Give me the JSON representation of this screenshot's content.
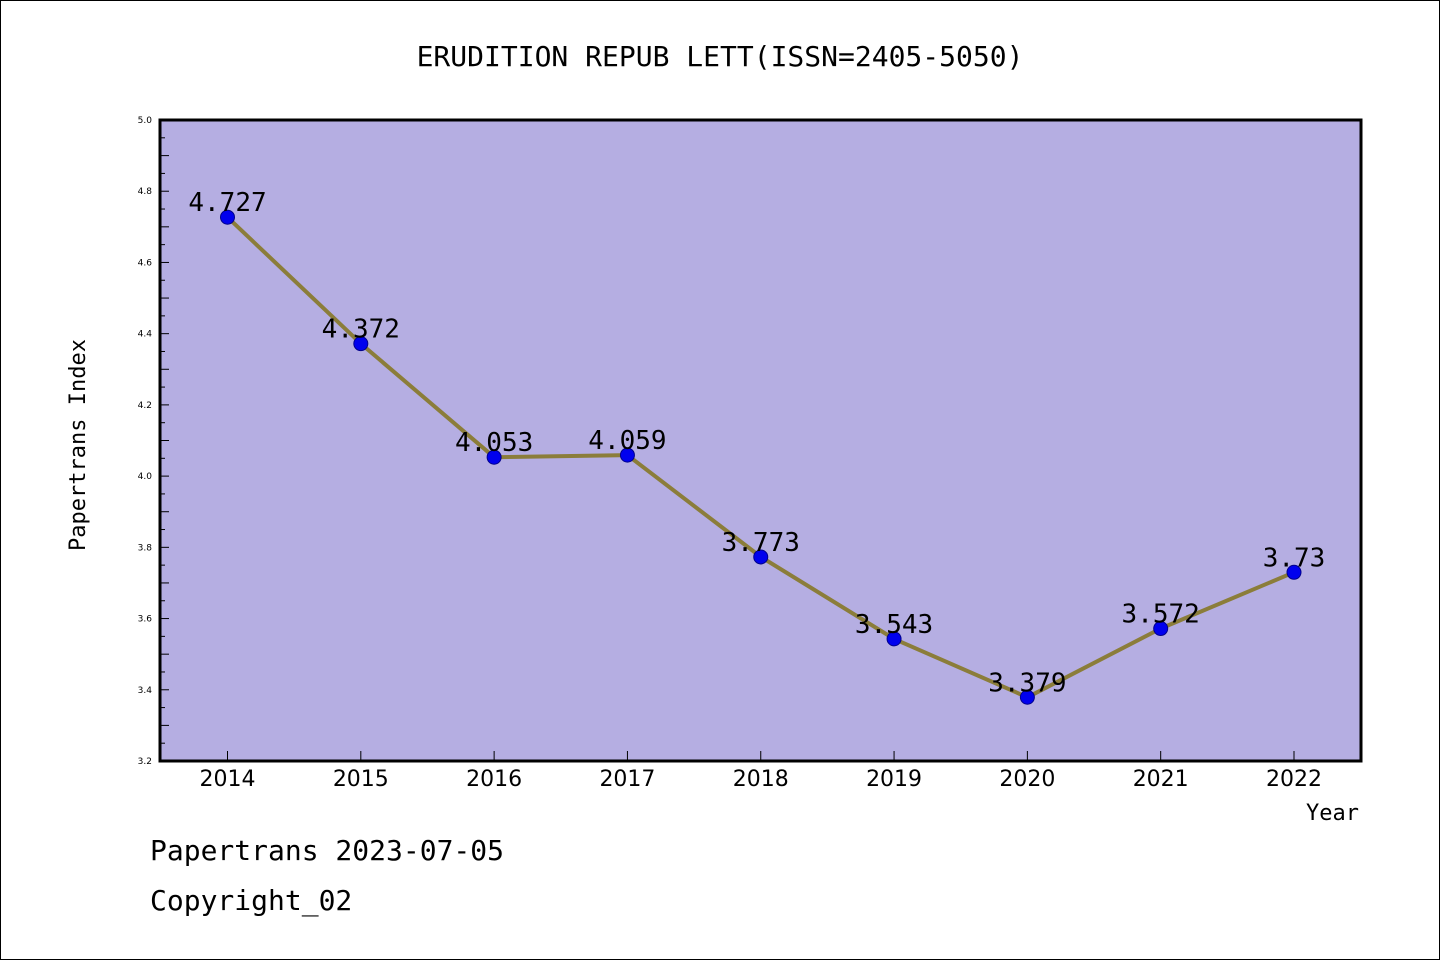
{
  "chart_data": {
    "type": "line",
    "title": "ERUDITION REPUB LETT(ISSN=2405-5050)",
    "xlabel": "Year",
    "ylabel": "Papertrans Index",
    "categories": [
      "2014",
      "2015",
      "2016",
      "2017",
      "2018",
      "2019",
      "2020",
      "2021",
      "2022"
    ],
    "series": [
      {
        "values": [
          4.727,
          4.372,
          4.053,
          4.059,
          3.773,
          3.543,
          3.379,
          3.572,
          3.73
        ],
        "data_labels": [
          "4.727",
          "4.372",
          "4.053",
          "4.059",
          "3.773",
          "3.543",
          "3.379",
          "3.572",
          "3.73"
        ]
      }
    ],
    "ylim": [
      3.2,
      5.0
    ],
    "yticks": [
      "3.2",
      "3.4",
      "3.6",
      "3.8",
      "4.0",
      "4.2",
      "4.4",
      "4.6",
      "4.8",
      "5.0"
    ],
    "grid": false,
    "colors": {
      "plot_background": "#b5aee2",
      "line": "#8b7d3a",
      "marker": "#0000ee",
      "marker_edge": "#00008b",
      "axes": "#000000"
    }
  },
  "footer": {
    "date_line": "Papertrans 2023-07-05",
    "copyright_line": "Copyright_02"
  }
}
